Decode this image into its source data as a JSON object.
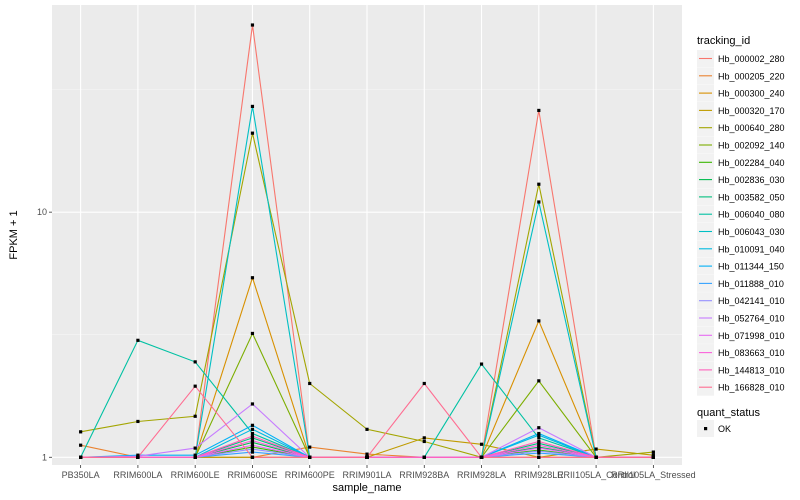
{
  "chart_data": {
    "type": "line",
    "y_scale": "log10",
    "ylim": [
      0.93,
      70
    ],
    "xlabel": "sample_name",
    "ylabel": "FPKM + 1",
    "y_ticks": [
      {
        "value": 1,
        "label": "1"
      },
      {
        "value": 10,
        "label": "10"
      }
    ],
    "categories": [
      "PB350LA",
      "RRIM600LA",
      "RRIM600LE",
      "RRIM600SE",
      "RRIM600PE",
      "RRIM901LA",
      "RRIM928BA",
      "RRIM928LA",
      "RRIM928LE",
      "RRII105LA_Control",
      "RRII105LA_Stressed"
    ],
    "grid": true,
    "legend": {
      "placement": "right",
      "color_title": "tracking_id",
      "shape_title": "quant_status",
      "shape_entries": [
        {
          "label": "OK",
          "marker": "point"
        }
      ]
    },
    "series": [
      {
        "name": "Hb_000002_280",
        "color": "#F8766D",
        "values": [
          1,
          1,
          1,
          58,
          1,
          1,
          1,
          1,
          26,
          1,
          1
        ]
      },
      {
        "name": "Hb_000205_220",
        "color": "#EA8331",
        "values": [
          1.12,
          1,
          1,
          1,
          1.1,
          1.03,
          1,
          1,
          1,
          1,
          1
        ]
      },
      {
        "name": "Hb_000300_240",
        "color": "#D89000",
        "values": [
          1,
          1,
          1,
          5.4,
          1,
          1,
          1,
          1,
          3.6,
          1,
          1
        ]
      },
      {
        "name": "Hb_000320_170",
        "color": "#C09B00",
        "values": [
          1,
          1,
          1,
          1,
          1,
          1,
          1.2,
          1.13,
          1,
          1.08,
          1.02
        ]
      },
      {
        "name": "Hb_000640_280",
        "color": "#A3A500",
        "values": [
          1.27,
          1.4,
          1.47,
          21,
          2,
          1.3,
          1.16,
          1,
          13,
          1,
          1.05
        ]
      },
      {
        "name": "Hb_002092_140",
        "color": "#7CAE00",
        "values": [
          1,
          1,
          1,
          3.2,
          1,
          1,
          1,
          1,
          2.05,
          1,
          1
        ]
      },
      {
        "name": "Hb_002284_040",
        "color": "#39B600",
        "values": [
          1,
          1,
          1,
          1.1,
          1,
          1,
          1,
          1,
          1.07,
          1,
          1
        ]
      },
      {
        "name": "Hb_002836_030",
        "color": "#00BB4E",
        "values": [
          1,
          1,
          1,
          1.15,
          1,
          1,
          1,
          1,
          1.1,
          1,
          1
        ]
      },
      {
        "name": "Hb_003582_050",
        "color": "#00BF7D",
        "values": [
          1,
          1,
          1,
          1.2,
          1,
          1,
          1,
          1,
          1.14,
          1,
          1
        ]
      },
      {
        "name": "Hb_006040_080",
        "color": "#00C1A3",
        "values": [
          1,
          3,
          2.45,
          1.25,
          1,
          1,
          1,
          2.4,
          1.2,
          1,
          1
        ]
      },
      {
        "name": "Hb_006043_030",
        "color": "#00BFC4",
        "values": [
          1,
          1,
          1,
          27,
          1,
          1,
          1,
          1,
          11,
          1,
          1
        ]
      },
      {
        "name": "Hb_010091_040",
        "color": "#00BAE0",
        "values": [
          1,
          1,
          1,
          1.3,
          1,
          1,
          1,
          1,
          1.23,
          1,
          1
        ]
      },
      {
        "name": "Hb_011344_150",
        "color": "#00B0F6",
        "values": [
          1,
          1.02,
          1.02,
          1.35,
          1,
          1,
          1,
          1,
          1.25,
          1,
          1
        ]
      },
      {
        "name": "Hb_011888_010",
        "color": "#35A2FF",
        "values": [
          1,
          1,
          1,
          1.05,
          1,
          1,
          1,
          1,
          1.04,
          1,
          1
        ]
      },
      {
        "name": "Hb_042141_010",
        "color": "#9590FF",
        "values": [
          1,
          1,
          1,
          1.08,
          1,
          1,
          1,
          1,
          1.06,
          1,
          1
        ]
      },
      {
        "name": "Hb_052764_010",
        "color": "#C77CFF",
        "values": [
          1,
          1.01,
          1.09,
          1.65,
          1,
          1,
          1,
          1,
          1.32,
          1,
          1
        ]
      },
      {
        "name": "Hb_071998_010",
        "color": "#E76BF3",
        "values": [
          1,
          1,
          1,
          1.12,
          1,
          1,
          1,
          1,
          1.09,
          1,
          1
        ]
      },
      {
        "name": "Hb_083663_010",
        "color": "#FA62DB",
        "values": [
          1,
          1,
          1,
          1.17,
          1,
          1,
          1,
          1,
          1.12,
          1,
          1
        ]
      },
      {
        "name": "Hb_144813_010",
        "color": "#FF62BC",
        "values": [
          1,
          1,
          1,
          1.22,
          1,
          1,
          1,
          1,
          1.16,
          1,
          1
        ]
      },
      {
        "name": "Hb_166828_010",
        "color": "#FF6C91",
        "values": [
          1,
          1,
          1.95,
          1,
          1,
          1,
          2,
          1,
          1,
          1,
          1
        ]
      }
    ]
  }
}
